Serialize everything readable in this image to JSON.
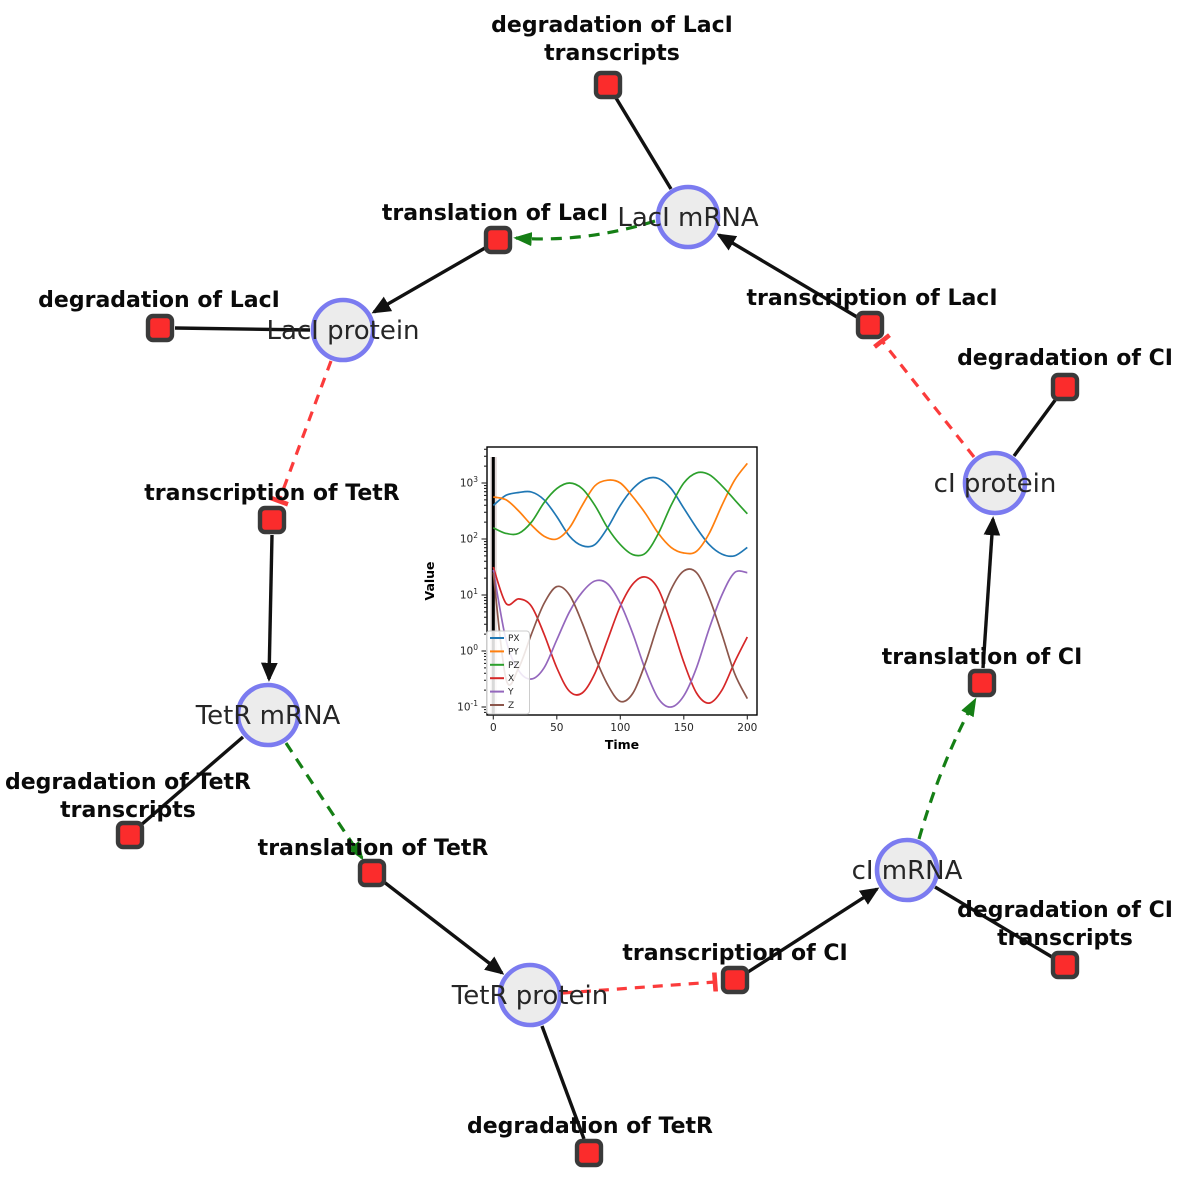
{
  "diagram": {
    "species": [
      {
        "id": "laci-mrna",
        "label": "LacI mRNA"
      },
      {
        "id": "laci-protein",
        "label": "LacI protein"
      },
      {
        "id": "ci-protein",
        "label": "cI protein"
      },
      {
        "id": "tetr-mrna",
        "label": "TetR mRNA"
      },
      {
        "id": "tetr-protein",
        "label": "TetR protein"
      },
      {
        "id": "ci-mrna",
        "label": "cI mRNA"
      }
    ],
    "reactions": [
      {
        "id": "deg-laci-transcripts",
        "line1": "degradation of LacI",
        "line2": "transcripts"
      },
      {
        "id": "translation-laci",
        "label": "translation of LacI"
      },
      {
        "id": "deg-laci",
        "label": "degradation of LacI"
      },
      {
        "id": "transcription-laci",
        "label": "transcription of LacI"
      },
      {
        "id": "deg-ci",
        "label": "degradation of CI"
      },
      {
        "id": "transcription-tetr",
        "label": "transcription of TetR"
      },
      {
        "id": "deg-tetr-transcripts",
        "line1": "degradation of TetR",
        "line2": "transcripts"
      },
      {
        "id": "translation-tetr",
        "label": "translation of TetR"
      },
      {
        "id": "deg-tetr",
        "label": "degradation of TetR"
      },
      {
        "id": "transcription-ci",
        "label": "transcription of CI"
      },
      {
        "id": "deg-ci-transcripts",
        "line1": "degradation of CI",
        "line2": "transcripts"
      },
      {
        "id": "translation-ci",
        "label": "translation of CI"
      }
    ],
    "colors": {
      "species_fill": "#ececec",
      "species_stroke": "#7b7bf0",
      "reaction_fill": "#fb2c2c",
      "reaction_stroke": "#3a3a3a",
      "product_edge": "#111111",
      "modifier_edge": "#157f15",
      "inhibitor_edge": "#fb3b3b"
    }
  },
  "chart_data": {
    "type": "line",
    "title": "",
    "xlabel": "Time",
    "ylabel": "Value",
    "yscale": "log",
    "xlim": [
      -5,
      208
    ],
    "ylim": [
      0.1,
      1000
    ],
    "xticks": [
      0,
      50,
      100,
      150,
      200
    ],
    "yticks_log10": [
      -1,
      0,
      1,
      2,
      3
    ],
    "legend_position": "lower left",
    "transient_line_t": 0,
    "x": [
      0,
      10,
      20,
      30,
      40,
      50,
      60,
      70,
      80,
      90,
      100,
      110,
      120,
      130,
      140,
      150,
      160,
      170,
      180,
      190,
      200
    ],
    "series": [
      {
        "name": "PX",
        "color": "#1f77b4",
        "log10_values": [
          2.6,
          2.78,
          2.83,
          2.84,
          2.7,
          2.4,
          2.05,
          1.88,
          1.9,
          2.2,
          2.6,
          2.9,
          3.07,
          3.08,
          2.9,
          2.55,
          2.2,
          1.9,
          1.73,
          1.7,
          1.85
        ]
      },
      {
        "name": "PY",
        "color": "#ff7f0e",
        "log10_values": [
          2.75,
          2.7,
          2.5,
          2.25,
          2.05,
          2.0,
          2.2,
          2.6,
          2.95,
          3.05,
          3.0,
          2.75,
          2.45,
          2.1,
          1.85,
          1.75,
          1.78,
          2.1,
          2.6,
          3.05,
          3.35
        ]
      },
      {
        "name": "PZ",
        "color": "#2ca02c",
        "log10_values": [
          2.2,
          2.1,
          2.1,
          2.3,
          2.65,
          2.9,
          3.0,
          2.9,
          2.6,
          2.2,
          1.9,
          1.72,
          1.75,
          2.1,
          2.6,
          3.0,
          3.18,
          3.15,
          2.95,
          2.7,
          2.45
        ]
      },
      {
        "name": "X",
        "color": "#d62728",
        "log10_values": [
          1.5,
          0.85,
          0.93,
          0.8,
          0.3,
          -0.3,
          -0.72,
          -0.75,
          -0.4,
          0.2,
          0.8,
          1.2,
          1.32,
          1.1,
          0.5,
          -0.2,
          -0.75,
          -0.93,
          -0.7,
          -0.2,
          0.25
        ]
      },
      {
        "name": "Y",
        "color": "#9467bd",
        "log10_values": [
          1.45,
          0.2,
          -0.35,
          -0.5,
          -0.3,
          0.2,
          0.7,
          1.05,
          1.25,
          1.2,
          0.85,
          0.3,
          -0.35,
          -0.85,
          -1.0,
          -0.8,
          -0.3,
          0.4,
          1.0,
          1.4,
          1.4
        ]
      },
      {
        "name": "Z",
        "color": "#8c564b",
        "log10_values": [
          1.4,
          -0.5,
          -0.3,
          0.3,
          0.85,
          1.15,
          1.0,
          0.5,
          -0.1,
          -0.6,
          -0.9,
          -0.75,
          -0.2,
          0.5,
          1.1,
          1.43,
          1.4,
          0.95,
          0.3,
          -0.4,
          -0.85
        ]
      }
    ]
  }
}
